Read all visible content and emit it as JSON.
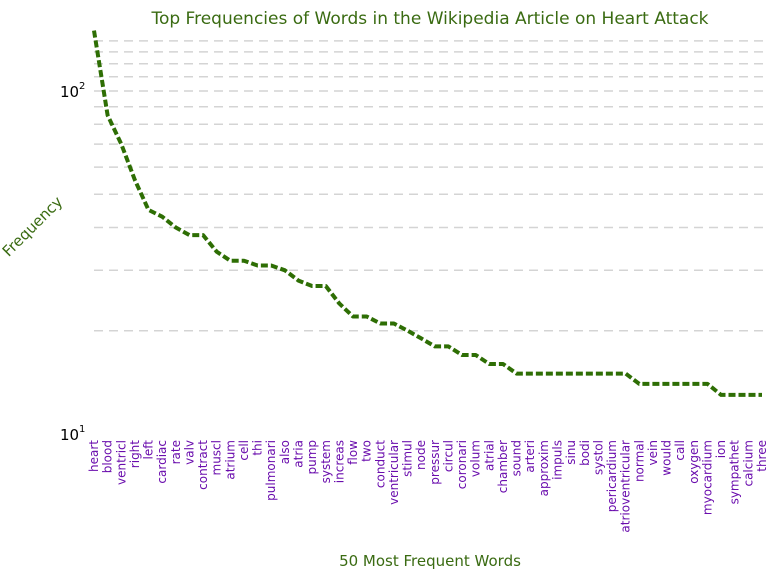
{
  "chart_data": {
    "type": "line",
    "title": "Top Frequencies of Words in the Wikipedia Article on Heart Attack",
    "xlabel": "50 Most Frequent Words",
    "ylabel": "Frequency",
    "yscale": "log",
    "ylim": [
      10,
      160
    ],
    "yticks": [
      {
        "base": "10",
        "exp": "1",
        "value": 10
      },
      {
        "base": "10",
        "exp": "2",
        "value": 100
      }
    ],
    "grid": "horizontal dashed",
    "colors": {
      "line": "#2e6e04",
      "title": "#3a6b12",
      "xticks": "#6a0dad",
      "grid": "#d4d4d4"
    },
    "categories": [
      "heart",
      "blood",
      "ventricl",
      "right",
      "left",
      "cardiac",
      "rate",
      "valv",
      "contract",
      "muscl",
      "atrium",
      "cell",
      "thi",
      "pulmonari",
      "also",
      "atria",
      "pump",
      "system",
      "increas",
      "flow",
      "two",
      "conduct",
      "ventricular",
      "stimul",
      "node",
      "pressur",
      "circul",
      "coronari",
      "volum",
      "atrial",
      "chamber",
      "sound",
      "arteri",
      "approxim",
      "impuls",
      "sinu",
      "bodi",
      "systol",
      "pericardium",
      "atrioventricular",
      "normal",
      "vein",
      "would",
      "call",
      "oxygen",
      "myocardium",
      "ion",
      "sympathet",
      "calcium",
      "three"
    ],
    "series": [
      {
        "values": [
          150,
          85,
          70,
          55,
          45,
          43,
          40,
          38,
          38,
          34,
          32,
          32,
          31,
          31,
          30,
          28,
          27,
          27,
          24,
          22,
          22,
          21,
          21,
          20,
          19,
          18,
          18,
          17,
          17,
          16,
          16,
          15,
          15,
          15,
          15,
          15,
          15,
          15,
          15,
          15,
          14,
          14,
          14,
          14,
          14,
          14,
          13,
          13,
          13,
          13
        ]
      }
    ]
  }
}
